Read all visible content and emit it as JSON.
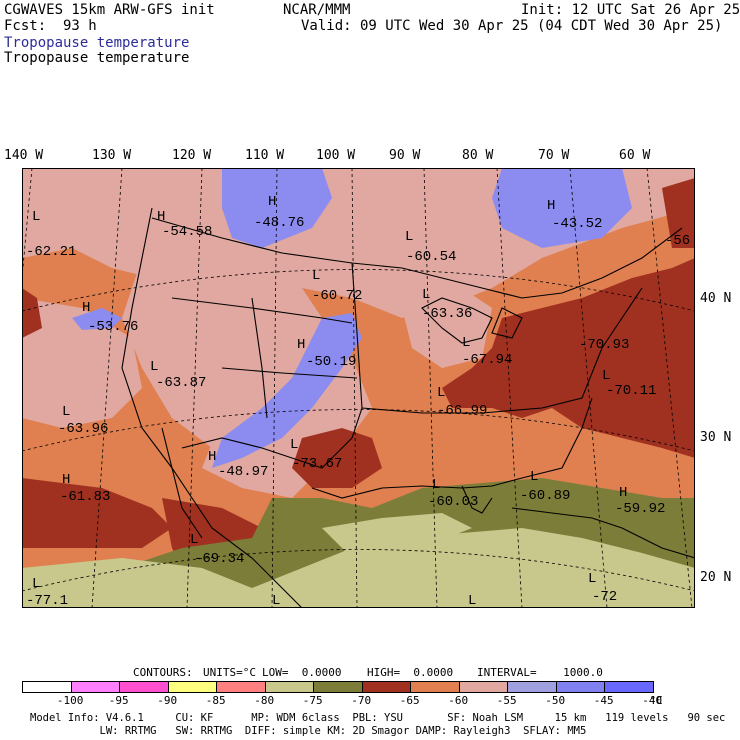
{
  "header": {
    "model": "CGWAVES 15km ARW-GFS init",
    "org": "NCAR/MMM",
    "init": "Init: 12 UTC Sat 26 Apr 25",
    "fcst_label": "Fcst:",
    "fcst_value": "93 h",
    "valid": "Valid: 09 UTC Wed 30 Apr 25 (04 CDT Wed 30 Apr 25)",
    "field_1": "Tropopause temperature",
    "field_2": "Tropopause temperature",
    "field_1_color": "#2d2d9a"
  },
  "lon_labels": [
    {
      "text": "140 W",
      "lon": -140
    },
    {
      "text": "130 W",
      "lon": -130
    },
    {
      "text": "120 W",
      "lon": -120
    },
    {
      "text": "110 W",
      "lon": -110
    },
    {
      "text": "100 W",
      "lon": -100
    },
    {
      "text": "90 W",
      "lon": -90
    },
    {
      "text": "80 W",
      "lon": -80
    },
    {
      "text": "70 W",
      "lon": -70
    },
    {
      "text": "60 W",
      "lon": -60
    }
  ],
  "lat_labels": [
    {
      "text": "40 N",
      "lat": 40
    },
    {
      "text": "30 N",
      "lat": 30
    },
    {
      "text": "20 N",
      "lat": 20
    }
  ],
  "centers": [
    {
      "type": "L",
      "value": "-62.21"
    },
    {
      "type": "H",
      "value": "-54.58"
    },
    {
      "type": "H",
      "value": "-48.76"
    },
    {
      "type": "L",
      "value": "-60.54"
    },
    {
      "type": "H",
      "value": "-43.52"
    },
    {
      "type": "",
      "value": "-56"
    },
    {
      "type": "L",
      "value": "-60.72"
    },
    {
      "type": "H",
      "value": "-53.76"
    },
    {
      "type": "L",
      "value": "-63.36"
    },
    {
      "type": "H",
      "value": "-50.19"
    },
    {
      "type": "L",
      "value": "-67.94"
    },
    {
      "type": "",
      "value": "-70.93"
    },
    {
      "type": "L",
      "value": "-63.87"
    },
    {
      "type": "L",
      "value": "-70.11"
    },
    {
      "type": "L",
      "value": "-63.96"
    },
    {
      "type": "L",
      "value": "-66.99"
    },
    {
      "type": "H",
      "value": "-48.97"
    },
    {
      "type": "L",
      "value": "-73.67"
    },
    {
      "type": "H",
      "value": "-61.83"
    },
    {
      "type": "L",
      "value": "-60.03"
    },
    {
      "type": "L",
      "value": "-60.89"
    },
    {
      "type": "H",
      "value": "-59.92"
    },
    {
      "type": "L",
      "value": "-69.34"
    },
    {
      "type": "L",
      "value": "-77.1"
    },
    {
      "type": "L",
      "value": ""
    },
    {
      "type": "L",
      "value": ""
    },
    {
      "type": "L",
      "value": "-72"
    }
  ],
  "contours_line": {
    "label": "CONTOURS:",
    "units": "UNITS=°C",
    "low": "LOW=  0.0000",
    "high": "HIGH=  0.0000",
    "interval": "INTERVAL=    1000.0"
  },
  "legend": {
    "colors": [
      "#ffffff",
      "#ff80ff",
      "#ff50d0",
      "#ffff80",
      "#ff8080",
      "#c8c88c",
      "#7d7d3a",
      "#a0301f",
      "#e08050",
      "#e0a8a0",
      "#a0a0e0",
      "#8080f0",
      "#6868ff"
    ],
    "labels": [
      "-100",
      "-95",
      "-90",
      "-85",
      "-80",
      "-75",
      "-70",
      "-65",
      "-60",
      "-55",
      "-50",
      "-45",
      "-40"
    ],
    "unit": "°C"
  },
  "footer": {
    "line1": "Model Info: V4.6.1     CU: KF      MP: WDM 6class  PBL: YSU       SF: Noah LSM     15 km   119 levels   90 sec",
    "line2": "           LW: RRTMG   SW: RRTMG  DIFF: simple KM: 2D Smagor DAMP: Rayleigh3  SFLAY: MM5"
  }
}
